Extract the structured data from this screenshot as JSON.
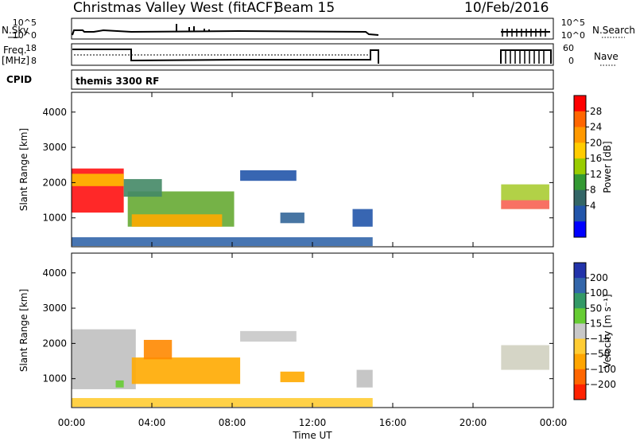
{
  "header": {
    "station": "Christmas Valley West (fitACF)",
    "beam": "Beam 15",
    "date": "10/Feb/2016"
  },
  "time_axis": {
    "ticks": [
      "00:00",
      "04:00",
      "08:00",
      "12:00",
      "16:00",
      "20:00",
      "00:00"
    ],
    "label": "Time UT"
  },
  "nsky_panel": {
    "left_label": "N.Sky",
    "right_label": "N.Search",
    "left_ticks": [
      "10^5",
      "10^0"
    ],
    "right_ticks": [
      "10^5",
      "10^0"
    ]
  },
  "freq_panel": {
    "left_label_1": "Freq.",
    "left_label_2": "[MHz]",
    "right_label": "Nave",
    "left_ticks": [
      "18",
      "8"
    ],
    "right_ticks": [
      "60",
      "0"
    ]
  },
  "cpid_panel": {
    "label": "CPID",
    "program": "themis 3300 RF"
  },
  "power_colorbar": {
    "label": "Power [dB]",
    "ticks": [
      "28",
      "24",
      "20",
      "16",
      "12",
      "8",
      "4"
    ],
    "colors": [
      "#ff0000",
      "#ff6600",
      "#ff9900",
      "#ffcc00",
      "#99cc00",
      "#339933",
      "#336666",
      "#2255aa",
      "#0000ff"
    ]
  },
  "velocity_colorbar": {
    "label": "Velocity [m s⁻¹]",
    "ticks": [
      "200",
      "100",
      "50",
      "15",
      "−15",
      "−50",
      "−100",
      "−200"
    ],
    "colors": [
      "#2233aa",
      "#3366aa",
      "#339966",
      "#66cc33",
      "#c8c8c8",
      "#ffcc33",
      "#ffa500",
      "#ff6600",
      "#ff2200"
    ]
  },
  "chart_data": [
    {
      "type": "heatmap",
      "title": "Power",
      "ylabel": "Slant Range [km]",
      "xlabel": "",
      "y_ticks": [
        1000,
        2000,
        3000,
        4000
      ],
      "ylim": [
        180,
        4560
      ],
      "xlim_hours": [
        0,
        24
      ],
      "regions": [
        {
          "t": [
            0.0,
            2.6
          ],
          "range": [
            1150,
            2400
          ],
          "color": "#ff1111"
        },
        {
          "t": [
            0.0,
            2.6
          ],
          "range": [
            1900,
            2250
          ],
          "color": "#ffbb00"
        },
        {
          "t": [
            2.8,
            8.1
          ],
          "range": [
            750,
            1750
          ],
          "color": "#66aa33"
        },
        {
          "t": [
            3.0,
            7.5
          ],
          "range": [
            750,
            1100
          ],
          "color": "#ffaa00"
        },
        {
          "t": [
            2.6,
            4.5
          ],
          "range": [
            1600,
            2100
          ],
          "color": "#448866"
        },
        {
          "t": [
            10.4,
            11.6
          ],
          "range": [
            850,
            1150
          ],
          "color": "#336699"
        },
        {
          "t": [
            14.0,
            15.0
          ],
          "range": [
            750,
            1250
          ],
          "color": "#2255aa"
        },
        {
          "t": [
            8.4,
            11.2
          ],
          "range": [
            2050,
            2350
          ],
          "color": "#2255aa"
        },
        {
          "t": [
            0.0,
            15.0
          ],
          "range": [
            200,
            450
          ],
          "color": "#3366aa"
        },
        {
          "t": [
            21.4,
            23.8
          ],
          "range": [
            1250,
            1950
          ],
          "color": "#aacc33"
        },
        {
          "t": [
            21.4,
            23.8
          ],
          "range": [
            1250,
            1500
          ],
          "color": "#ff6666"
        }
      ]
    },
    {
      "type": "heatmap",
      "title": "Velocity",
      "ylabel": "Slant Range [km]",
      "xlabel": "Time UT",
      "y_ticks": [
        1000,
        2000,
        3000,
        4000
      ],
      "ylim": [
        180,
        4560
      ],
      "xlim_hours": [
        0,
        24
      ],
      "regions": [
        {
          "t": [
            0.0,
            3.2
          ],
          "range": [
            700,
            2400
          ],
          "color": "#c0c0c0"
        },
        {
          "t": [
            2.2,
            2.6
          ],
          "range": [
            750,
            950
          ],
          "color": "#66cc33"
        },
        {
          "t": [
            3.0,
            8.4
          ],
          "range": [
            850,
            1600
          ],
          "color": "#ffaa00"
        },
        {
          "t": [
            3.6,
            5.0
          ],
          "range": [
            1550,
            2100
          ],
          "color": "#ff8800"
        },
        {
          "t": [
            10.4,
            11.6
          ],
          "range": [
            900,
            1200
          ],
          "color": "#ffaa00"
        },
        {
          "t": [
            14.2,
            15.0
          ],
          "range": [
            750,
            1250
          ],
          "color": "#c0c0c0"
        },
        {
          "t": [
            8.4,
            11.2
          ],
          "range": [
            2050,
            2350
          ],
          "color": "#c8c8c8"
        },
        {
          "t": [
            0.0,
            15.0
          ],
          "range": [
            200,
            450
          ],
          "color": "#ffcc33"
        },
        {
          "t": [
            21.4,
            23.8
          ],
          "range": [
            1250,
            1950
          ],
          "color": "#d0d0c0"
        }
      ]
    }
  ]
}
